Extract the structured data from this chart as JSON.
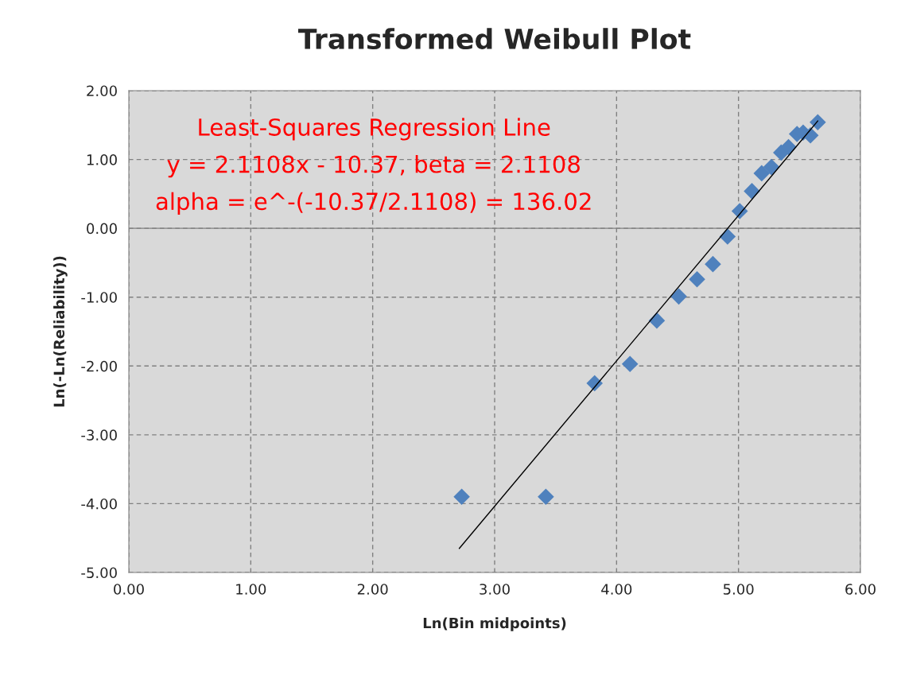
{
  "chart_data": {
    "type": "scatter",
    "title": "Transformed Weibull Plot",
    "xlabel": "Ln(Bin midpoints)",
    "ylabel": "Ln(-Ln(Reliability))",
    "annotations": [
      "Least-Squares Regression Line",
      "y = 2.1108x - 10.37, beta = 2.1108",
      "alpha = e^-(-10.37/2.1108) = 136.02"
    ],
    "series": [
      {
        "color": "#4f81bd",
        "marker": "diamond",
        "x": [
          2.73,
          3.42,
          3.82,
          4.11,
          4.33,
          4.51,
          4.66,
          4.79,
          4.91,
          5.01,
          5.11,
          5.19,
          5.27,
          5.35,
          5.41,
          5.48,
          5.53,
          5.59,
          5.65
        ],
        "values": [
          -3.9,
          -3.9,
          -2.25,
          -1.97,
          -1.34,
          -0.99,
          -0.74,
          -0.52,
          -0.12,
          0.25,
          0.54,
          0.8,
          0.89,
          1.1,
          1.18,
          1.37,
          1.39,
          1.35,
          1.54
        ]
      },
      {
        "type": "line",
        "color": "#000000",
        "marker": "none",
        "x": [
          2.71,
          5.65
        ],
        "values": [
          -4.65,
          1.56
        ]
      }
    ],
    "ref_lines": [
      {
        "axis": "y",
        "value": 0,
        "color": "#808080",
        "line_style": "solid"
      }
    ],
    "xlim": [
      0,
      6
    ],
    "ylim": [
      -5,
      2
    ],
    "xticks": [
      {
        "value": 0,
        "label": "0.00"
      },
      {
        "value": 1,
        "label": "1.00"
      },
      {
        "value": 2,
        "label": "2.00"
      },
      {
        "value": 3,
        "label": "3.00"
      },
      {
        "value": 4,
        "label": "4.00"
      },
      {
        "value": 5,
        "label": "5.00"
      },
      {
        "value": 6,
        "label": "6.00"
      }
    ],
    "yticks": [
      {
        "value": -5,
        "label": "-5.00"
      },
      {
        "value": -4,
        "label": "-4.00"
      },
      {
        "value": -3,
        "label": "-3.00"
      },
      {
        "value": -2,
        "label": "-2.00"
      },
      {
        "value": -1,
        "label": "-1.00"
      },
      {
        "value": 0,
        "label": "0.00"
      },
      {
        "value": 1,
        "label": "1.00"
      },
      {
        "value": 2,
        "label": "2.00"
      }
    ],
    "grid": true,
    "legend": false
  }
}
